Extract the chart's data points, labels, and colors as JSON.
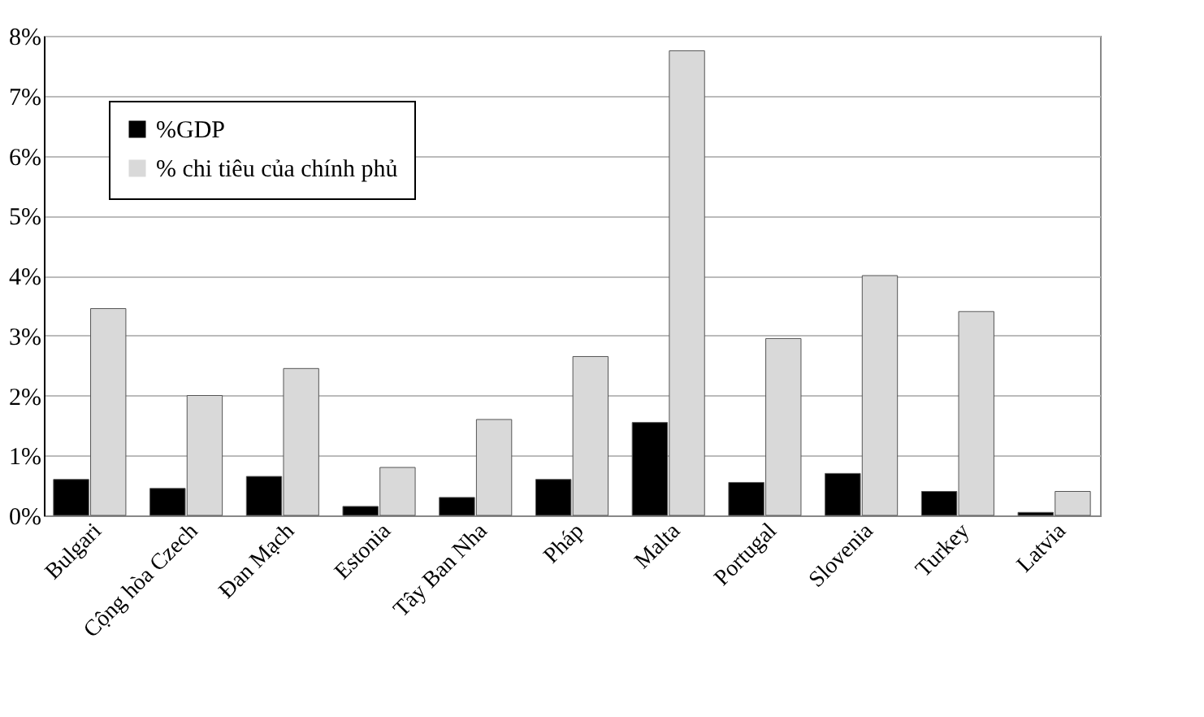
{
  "chart_data": {
    "type": "bar",
    "categories": [
      "Bulgari",
      "Cộng hòa Czech",
      "Đan Mạch",
      "Estonia",
      "Tây Ban Nha",
      "Pháp",
      "Malta",
      "Portugal",
      "Slovenia",
      "Turkey",
      "Latvia"
    ],
    "series": [
      {
        "name": "%GDP",
        "color": "#000000",
        "values": [
          0.6,
          0.45,
          0.65,
          0.15,
          0.3,
          0.6,
          1.55,
          0.55,
          0.7,
          0.4,
          0.05
        ]
      },
      {
        "name": "% chi tiêu của chính phủ",
        "color": "#d9d9d9",
        "values": [
          3.45,
          2.0,
          2.45,
          0.8,
          1.6,
          2.65,
          7.75,
          2.95,
          4.0,
          3.4,
          0.4
        ]
      }
    ],
    "ylim": [
      0,
      8
    ],
    "yticks": [
      {
        "value": 0,
        "label": "0%"
      },
      {
        "value": 1,
        "label": "1%"
      },
      {
        "value": 2,
        "label": "2%"
      },
      {
        "value": 3,
        "label": "3%"
      },
      {
        "value": 4,
        "label": "4%"
      },
      {
        "value": 5,
        "label": "5%"
      },
      {
        "value": 6,
        "label": "6%"
      },
      {
        "value": 7,
        "label": "7%"
      },
      {
        "value": 8,
        "label": "8%"
      }
    ],
    "grid": "y",
    "legend": "top left"
  }
}
